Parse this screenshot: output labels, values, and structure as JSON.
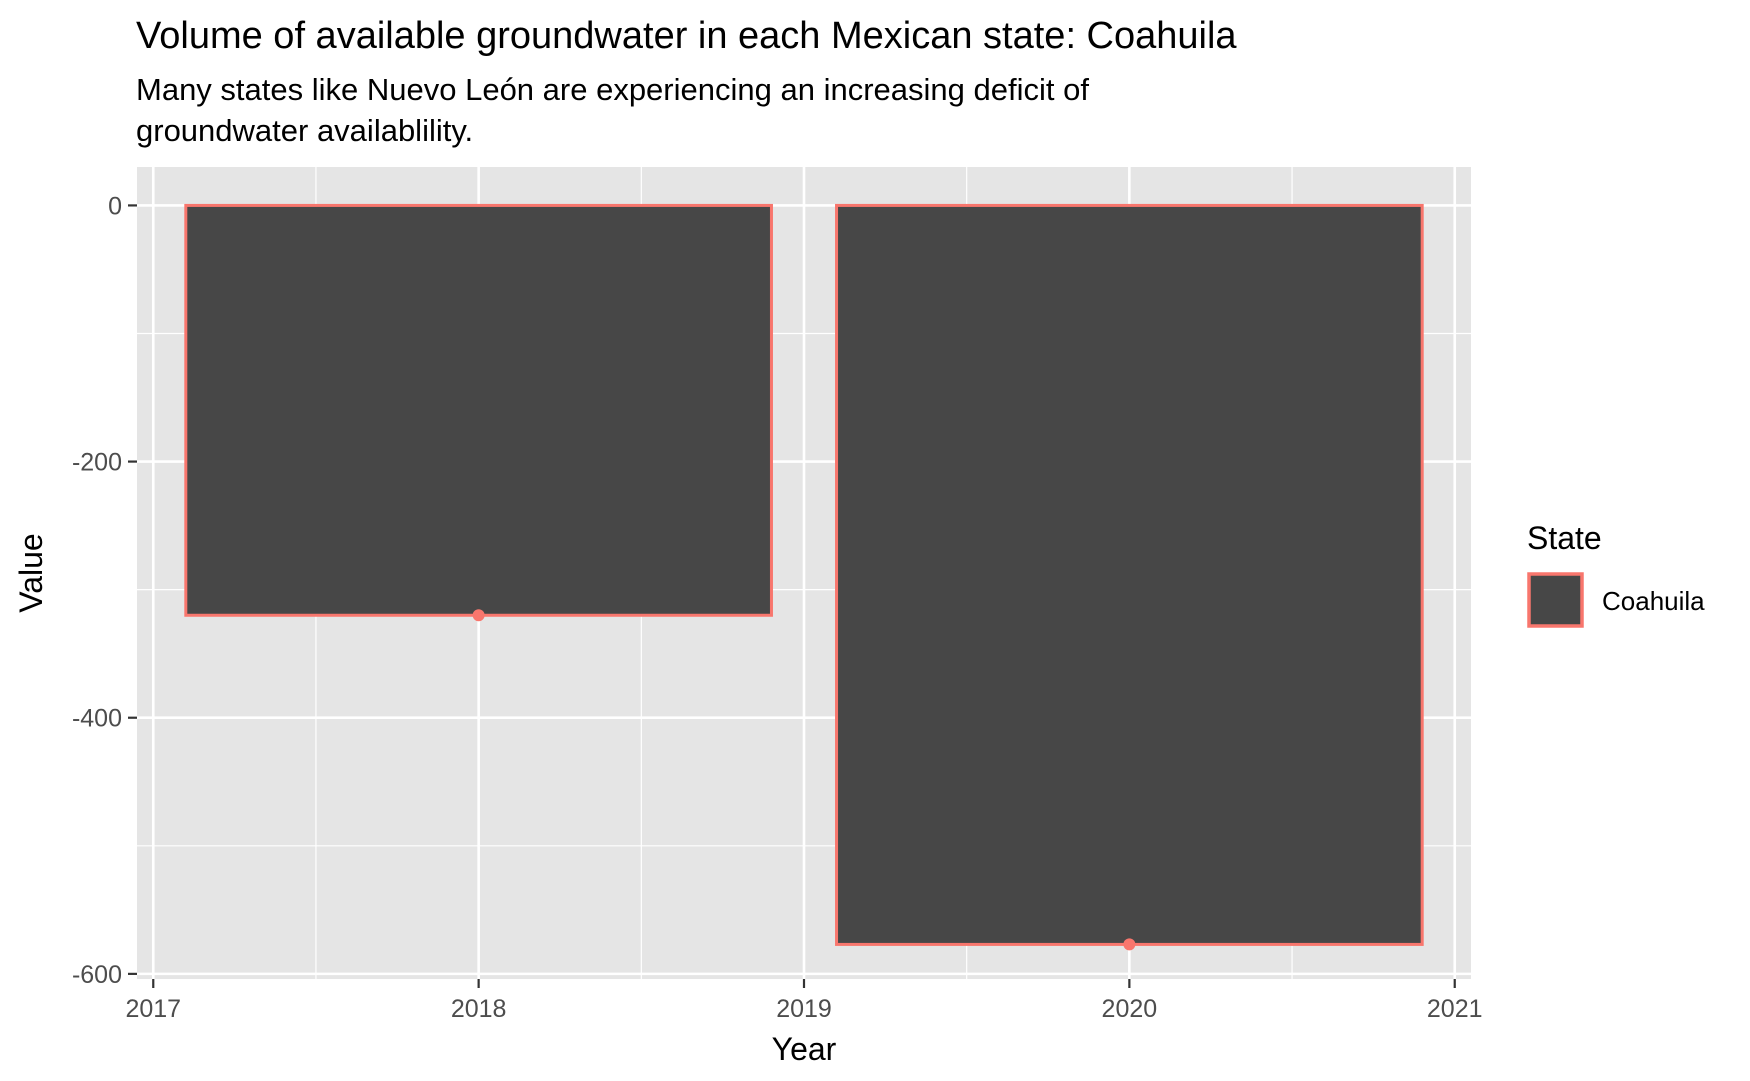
{
  "chart_data": {
    "type": "bar",
    "title": "Volume of available groundwater in each Mexican state: Coahuila",
    "subtitle_lines": [
      "Many states like Nuevo León are experiencing an increasing deficit of",
      "groundwater availablility."
    ],
    "xlabel": "Year",
    "ylabel": "Value",
    "xlim": [
      2016.95,
      2021.05
    ],
    "ylim": [
      -604,
      30
    ],
    "x_ticks": [
      2017,
      2018,
      2019,
      2020,
      2021
    ],
    "x_tick_labels": [
      "2017",
      "2018",
      "2019",
      "2020",
      "2021"
    ],
    "y_ticks": [
      0,
      -200,
      -400,
      -600
    ],
    "y_tick_labels": [
      "0",
      "-200",
      "-400",
      "-600"
    ],
    "bar_width_years": 1.8,
    "series": [
      {
        "name": "Coahuila",
        "fill": "#474747",
        "outline": "#f8766d",
        "points": [
          {
            "x": 2018,
            "y": -320
          },
          {
            "x": 2020,
            "y": -577
          }
        ]
      }
    ],
    "legend": {
      "title": "State",
      "position": "right",
      "entries": [
        "Coahuila"
      ]
    },
    "grid": true,
    "panel_background": "#e5e5e5",
    "grid_color": "#ffffff",
    "text_color": "#000000",
    "tick_text_color": "#4d4d4d"
  }
}
